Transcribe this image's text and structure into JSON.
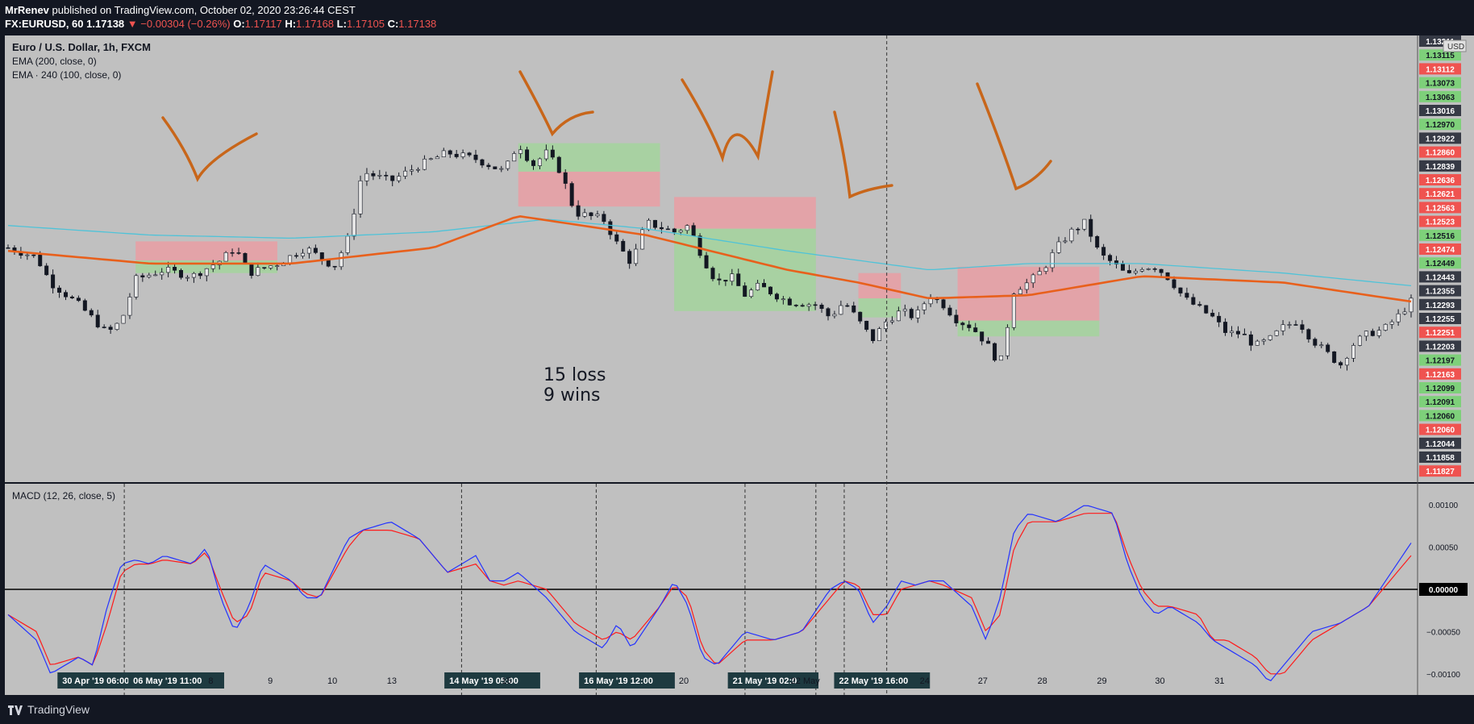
{
  "header": {
    "author": "MrRenev",
    "published_text": "published on TradingView.com, October 02, 2020 23:26:44 CEST",
    "symbol": "FX:EURUSD, 60",
    "last": "1.17138",
    "change": "−0.00304 (−0.26%)",
    "o_label": "O:",
    "o": "1.17117",
    "h_label": "H:",
    "h": "1.17168",
    "l_label": "L:",
    "l": "1.17105",
    "c_label": "C:",
    "c": "1.17138"
  },
  "legend": {
    "title": "Euro / U.S. Dollar, 1h, FXCM",
    "ema1": "EMA (200, close, 0)",
    "ema2": "EMA · 240 (100, close, 0)",
    "macd": "MACD (12, 26, close, 5)"
  },
  "annotation": {
    "line1": "15 loss",
    "line2": "9 wins"
  },
  "footer": {
    "brand": "TradingView"
  },
  "colors": {
    "background": "#c0c0c0",
    "ema_long": "#4fc3d8",
    "ema_short": "#e8601c",
    "macd_line": "#2433ff",
    "signal_line": "#ff1a1a",
    "drawing": "#c8661a",
    "loss_box": "#e99ea3",
    "win_box": "#a3d49c",
    "price_red": "#ef5350",
    "price_green": "#7ed07a",
    "price_dark": "#363a45"
  },
  "chart_data": [
    {
      "type": "candlestick",
      "y_axis_label": "USD",
      "ylim": [
        1.1181,
        1.1322
      ],
      "x_ticks": [
        "30 Apr '19  06:00",
        "06 May '19  11:00",
        "8",
        "9",
        "10",
        "13",
        "14 May '19  05:00",
        "15",
        "16 May '19  12:00",
        "20",
        "21 May '19  02:0",
        "22 May",
        "22 May '19  16:00",
        "24",
        "27",
        "28",
        "29",
        "30",
        "31"
      ],
      "price_labels": [
        {
          "value": "1.13211",
          "style": "dark"
        },
        {
          "value": "1.13115",
          "style": "green"
        },
        {
          "value": "1.13112",
          "style": "red"
        },
        {
          "value": "1.13073",
          "style": "green"
        },
        {
          "value": "1.13063",
          "style": "green"
        },
        {
          "value": "1.13016",
          "style": "dark"
        },
        {
          "value": "1.12970",
          "style": "green"
        },
        {
          "value": "1.12922",
          "style": "dark"
        },
        {
          "value": "1.12860",
          "style": "red"
        },
        {
          "value": "1.12839",
          "style": "dark"
        },
        {
          "value": "1.12636",
          "style": "red"
        },
        {
          "value": "1.12621",
          "style": "red"
        },
        {
          "value": "1.12563",
          "style": "red"
        },
        {
          "value": "1.12523",
          "style": "red"
        },
        {
          "value": "1.12516",
          "style": "green"
        },
        {
          "value": "1.12474",
          "style": "red"
        },
        {
          "value": "1.12449",
          "style": "green"
        },
        {
          "value": "1.12443",
          "style": "dark"
        },
        {
          "value": "1.12355",
          "style": "dark"
        },
        {
          "value": "1.12293",
          "style": "dark"
        },
        {
          "value": "1.12255",
          "style": "dark"
        },
        {
          "value": "1.12251",
          "style": "red"
        },
        {
          "value": "1.12203",
          "style": "dark"
        },
        {
          "value": "1.12197",
          "style": "green"
        },
        {
          "value": "1.12163",
          "style": "red"
        },
        {
          "value": "1.12099",
          "style": "green"
        },
        {
          "value": "1.12091",
          "style": "green"
        },
        {
          "value": "1.12060",
          "style": "green"
        },
        {
          "value": "1.12060",
          "style": "red"
        },
        {
          "value": "1.12044",
          "style": "dark"
        },
        {
          "value": "1.11858",
          "style": "dark"
        },
        {
          "value": "1.11827",
          "style": "red"
        }
      ],
      "price_path": [
        [
          0,
          1.1255
        ],
        [
          2,
          1.1252
        ],
        [
          3,
          1.1244
        ],
        [
          5,
          1.1237
        ],
        [
          7,
          1.1228
        ],
        [
          8,
          1.1232
        ],
        [
          9,
          1.1245
        ],
        [
          11,
          1.1248
        ],
        [
          13,
          1.1246
        ],
        [
          15,
          1.1251
        ],
        [
          16,
          1.1255
        ],
        [
          17,
          1.1247
        ],
        [
          19,
          1.125
        ],
        [
          21,
          1.1255
        ],
        [
          22,
          1.1252
        ],
        [
          23,
          1.1249
        ],
        [
          24,
          1.1258
        ],
        [
          25,
          1.1279
        ],
        [
          27,
          1.1276
        ],
        [
          29,
          1.1281
        ],
        [
          31,
          1.1285
        ],
        [
          33,
          1.1283
        ],
        [
          35,
          1.1279
        ],
        [
          36,
          1.1288
        ],
        [
          37,
          1.1281
        ],
        [
          38,
          1.1285
        ],
        [
          39,
          1.1279
        ],
        [
          40,
          1.1266
        ],
        [
          42,
          1.1264
        ],
        [
          43,
          1.1256
        ],
        [
          44,
          1.125
        ],
        [
          45,
          1.1263
        ],
        [
          47,
          1.126
        ],
        [
          48,
          1.1262
        ],
        [
          49,
          1.1252
        ],
        [
          50,
          1.1244
        ],
        [
          51,
          1.1246
        ],
        [
          52,
          1.124
        ],
        [
          53,
          1.1243
        ],
        [
          55,
          1.1238
        ],
        [
          57,
          1.1237
        ],
        [
          58,
          1.1233
        ],
        [
          59,
          1.1238
        ],
        [
          60,
          1.1232
        ],
        [
          61,
          1.1226
        ],
        [
          62,
          1.1232
        ],
        [
          63,
          1.1235
        ],
        [
          64,
          1.1233
        ],
        [
          65,
          1.124
        ],
        [
          66,
          1.1237
        ],
        [
          67,
          1.1232
        ],
        [
          68,
          1.123
        ],
        [
          69,
          1.1225
        ],
        [
          70,
          1.1218
        ],
        [
          71,
          1.1242
        ],
        [
          72,
          1.1244
        ],
        [
          73,
          1.1248
        ],
        [
          74,
          1.1255
        ],
        [
          75,
          1.126
        ],
        [
          76,
          1.1263
        ],
        [
          77,
          1.1253
        ],
        [
          78,
          1.125
        ],
        [
          79,
          1.1246
        ],
        [
          80,
          1.1249
        ],
        [
          81,
          1.1249
        ],
        [
          82,
          1.1245
        ],
        [
          83,
          1.1239
        ],
        [
          85,
          1.1233
        ],
        [
          86,
          1.1228
        ],
        [
          87,
          1.1228
        ],
        [
          88,
          1.1224
        ],
        [
          89,
          1.1226
        ],
        [
          90,
          1.123
        ],
        [
          91,
          1.1232
        ],
        [
          92,
          1.1226
        ],
        [
          93,
          1.1222
        ],
        [
          94,
          1.1218
        ],
        [
          95,
          1.1225
        ],
        [
          96,
          1.1228
        ],
        [
          97,
          1.1229
        ],
        [
          98,
          1.1233
        ],
        [
          99,
          1.1238
        ]
      ],
      "ema_long_path": [
        [
          0,
          1.1262
        ],
        [
          10,
          1.1259
        ],
        [
          20,
          1.1258
        ],
        [
          30,
          1.126
        ],
        [
          38,
          1.1264
        ],
        [
          45,
          1.1261
        ],
        [
          55,
          1.1254
        ],
        [
          65,
          1.1248
        ],
        [
          72,
          1.125
        ],
        [
          80,
          1.125
        ],
        [
          90,
          1.1247
        ],
        [
          99,
          1.1243
        ]
      ],
      "ema_short_path": [
        [
          0,
          1.1254
        ],
        [
          10,
          1.125
        ],
        [
          20,
          1.125
        ],
        [
          30,
          1.1255
        ],
        [
          36,
          1.1265
        ],
        [
          45,
          1.1259
        ],
        [
          55,
          1.1248
        ],
        [
          60,
          1.1244
        ],
        [
          65,
          1.1239
        ],
        [
          72,
          1.124
        ],
        [
          80,
          1.1246
        ],
        [
          90,
          1.1244
        ],
        [
          99,
          1.1238
        ]
      ],
      "boxes": [
        {
          "x0": 9,
          "x1": 19,
          "y0": 1.1257,
          "y1": 1.1251,
          "kind": "loss"
        },
        {
          "x0": 9,
          "x1": 19,
          "y0": 1.1251,
          "y1": 1.1247,
          "kind": "win"
        },
        {
          "x0": 36,
          "x1": 46,
          "y0": 1.1288,
          "y1": 1.1279,
          "kind": "win"
        },
        {
          "x0": 36,
          "x1": 46,
          "y0": 1.1279,
          "y1": 1.1268,
          "kind": "loss"
        },
        {
          "x0": 47,
          "x1": 57,
          "y0": 1.1271,
          "y1": 1.1261,
          "kind": "loss"
        },
        {
          "x0": 47,
          "x1": 57,
          "y0": 1.1261,
          "y1": 1.1235,
          "kind": "win"
        },
        {
          "x0": 60,
          "x1": 63,
          "y0": 1.1247,
          "y1": 1.1239,
          "kind": "loss"
        },
        {
          "x0": 60,
          "x1": 63,
          "y0": 1.1239,
          "y1": 1.1233,
          "kind": "win"
        },
        {
          "x0": 67,
          "x1": 77,
          "y0": 1.1249,
          "y1": 1.1232,
          "kind": "loss"
        },
        {
          "x0": 67,
          "x1": 77,
          "y0": 1.1232,
          "y1": 1.1227,
          "kind": "win"
        }
      ]
    },
    {
      "type": "line",
      "name": "MACD",
      "ylim": [
        -0.00125,
        0.00125
      ],
      "y_ticks": [
        "0.00100",
        "0.00050",
        "0.00000",
        "−0.00050",
        "−0.00100"
      ],
      "y_tick_values": [
        0.001,
        0.0005,
        0,
        -0.0005,
        -0.001
      ],
      "macd": [
        [
          0,
          -0.0003
        ],
        [
          2,
          -0.0006
        ],
        [
          3,
          -0.001
        ],
        [
          5,
          -0.0008
        ],
        [
          6,
          -0.0009
        ],
        [
          7,
          -0.0002
        ],
        [
          8,
          0.0003
        ],
        [
          9,
          0.00035
        ],
        [
          10,
          0.0003
        ],
        [
          11,
          0.0004
        ],
        [
          13,
          0.0003
        ],
        [
          14,
          0.0005
        ],
        [
          15,
          -0.0001
        ],
        [
          16,
          -0.0005
        ],
        [
          17,
          -0.0002
        ],
        [
          18,
          0.0003
        ],
        [
          20,
          0.0001
        ],
        [
          21,
          -0.0001
        ],
        [
          22,
          -0.0001
        ],
        [
          24,
          0.0006
        ],
        [
          25,
          0.0007
        ],
        [
          27,
          0.0008
        ],
        [
          29,
          0.0006
        ],
        [
          31,
          0.0002
        ],
        [
          33,
          0.0004
        ],
        [
          34,
          0.0001
        ],
        [
          35,
          0.0001
        ],
        [
          36,
          0.0002
        ],
        [
          38,
          -0.0001
        ],
        [
          40,
          -0.0005
        ],
        [
          42,
          -0.0007
        ],
        [
          43,
          -0.0004
        ],
        [
          44,
          -0.0007
        ],
        [
          46,
          -0.0002
        ],
        [
          47,
          0.0001
        ],
        [
          48,
          -0.0002
        ],
        [
          49,
          -0.0008
        ],
        [
          50,
          -0.0009
        ],
        [
          52,
          -0.0005
        ],
        [
          54,
          -0.0006
        ],
        [
          56,
          -0.0005
        ],
        [
          58,
          0.0
        ],
        [
          59,
          0.0001
        ],
        [
          60,
          0.0
        ],
        [
          61,
          -0.0004
        ],
        [
          62,
          -0.0002
        ],
        [
          63,
          0.0001
        ],
        [
          64,
          5e-05
        ],
        [
          65,
          0.0001
        ],
        [
          66,
          0.0001
        ],
        [
          68,
          -0.0002
        ],
        [
          69,
          -0.0006
        ],
        [
          70,
          -0.0001
        ],
        [
          71,
          0.0007
        ],
        [
          72,
          0.0009
        ],
        [
          74,
          0.0008
        ],
        [
          76,
          0.001
        ],
        [
          78,
          0.0009
        ],
        [
          79,
          0.0003
        ],
        [
          80,
          -0.0001
        ],
        [
          81,
          -0.0003
        ],
        [
          82,
          -0.0002
        ],
        [
          84,
          -0.0004
        ],
        [
          85,
          -0.0006
        ],
        [
          86,
          -0.0007
        ],
        [
          88,
          -0.0009
        ],
        [
          89,
          -0.0011
        ],
        [
          90,
          -0.0009
        ],
        [
          92,
          -0.0005
        ],
        [
          94,
          -0.0004
        ],
        [
          96,
          -0.0002
        ],
        [
          98,
          0.0003
        ],
        [
          99,
          0.00055
        ]
      ],
      "signal": [
        [
          0,
          -0.0003
        ],
        [
          2,
          -0.0005
        ],
        [
          3,
          -0.0009
        ],
        [
          5,
          -0.0008
        ],
        [
          6,
          -0.0009
        ],
        [
          7,
          -0.0004
        ],
        [
          8,
          0.0002
        ],
        [
          9,
          0.0003
        ],
        [
          10,
          0.0003
        ],
        [
          11,
          0.00035
        ],
        [
          13,
          0.0003
        ],
        [
          14,
          0.00045
        ],
        [
          15,
          0.0
        ],
        [
          16,
          -0.0004
        ],
        [
          17,
          -0.0003
        ],
        [
          18,
          0.0002
        ],
        [
          20,
          0.0001
        ],
        [
          21,
          -5e-05
        ],
        [
          22,
          -0.0001
        ],
        [
          24,
          0.0005
        ],
        [
          25,
          0.0007
        ],
        [
          27,
          0.0007
        ],
        [
          29,
          0.0006
        ],
        [
          31,
          0.0002
        ],
        [
          33,
          0.0003
        ],
        [
          34,
          0.0001
        ],
        [
          35,
          5e-05
        ],
        [
          36,
          0.0001
        ],
        [
          38,
          0.0
        ],
        [
          40,
          -0.0004
        ],
        [
          42,
          -0.0006
        ],
        [
          43,
          -0.0005
        ],
        [
          44,
          -0.0006
        ],
        [
          46,
          -0.0002
        ],
        [
          47,
          5e-05
        ],
        [
          48,
          -0.0001
        ],
        [
          49,
          -0.0007
        ],
        [
          50,
          -0.0009
        ],
        [
          52,
          -0.0006
        ],
        [
          54,
          -0.0006
        ],
        [
          56,
          -0.0005
        ],
        [
          58,
          -0.0001
        ],
        [
          59,
          0.0001
        ],
        [
          60,
          5e-05
        ],
        [
          61,
          -0.0003
        ],
        [
          62,
          -0.0003
        ],
        [
          63,
          0.0
        ],
        [
          64,
          5e-05
        ],
        [
          65,
          0.0001
        ],
        [
          66,
          5e-05
        ],
        [
          68,
          -0.0001
        ],
        [
          69,
          -0.0005
        ],
        [
          70,
          -0.0003
        ],
        [
          71,
          0.0005
        ],
        [
          72,
          0.0008
        ],
        [
          74,
          0.0008
        ],
        [
          76,
          0.0009
        ],
        [
          78,
          0.0009
        ],
        [
          79,
          0.0004
        ],
        [
          80,
          0.0
        ],
        [
          81,
          -0.0002
        ],
        [
          82,
          -0.0002
        ],
        [
          84,
          -0.0003
        ],
        [
          85,
          -0.0006
        ],
        [
          86,
          -0.0006
        ],
        [
          88,
          -0.0008
        ],
        [
          89,
          -0.001
        ],
        [
          90,
          -0.001
        ],
        [
          92,
          -0.0006
        ],
        [
          94,
          -0.0004
        ],
        [
          96,
          -0.0002
        ],
        [
          98,
          0.0002
        ],
        [
          99,
          0.0004
        ]
      ]
    }
  ]
}
